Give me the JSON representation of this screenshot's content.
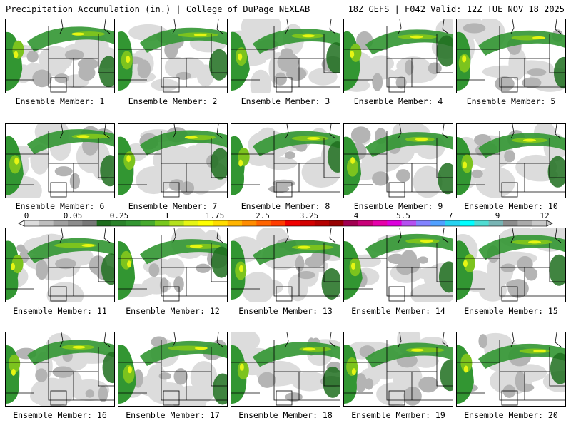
{
  "header": {
    "left": "Precipitation Accumulation (in.) | College of DuPage NEXLAB",
    "right": "18Z GEFS | F042 Valid: 12Z TUE NOV 18 2025"
  },
  "members": [
    "Ensemble Member: 1",
    "Ensemble Member: 2",
    "Ensemble Member: 3",
    "Ensemble Member: 4",
    "Ensemble Member: 5",
    "Ensemble Member: 6",
    "Ensemble Member: 7",
    "Ensemble Member: 8",
    "Ensemble Member: 9",
    "Ensemble Member: 10",
    "Ensemble Member: 11",
    "Ensemble Member: 12",
    "Ensemble Member: 13",
    "Ensemble Member: 14",
    "Ensemble Member: 15",
    "Ensemble Member: 16",
    "Ensemble Member: 17",
    "Ensemble Member: 18",
    "Ensemble Member: 19",
    "Ensemble Member: 20"
  ],
  "colorbar": {
    "labels": [
      "0",
      "0.05",
      "0.25",
      "1",
      "1.75",
      "2.5",
      "3.25",
      "4",
      "5.5",
      "7",
      "9",
      "12"
    ],
    "colors": [
      "#dcdcdc",
      "#bebebe",
      "#a0a0a0",
      "#8c8c8c",
      "#787878",
      "#1e6e1e",
      "#2a822a",
      "#329632",
      "#46aa2e",
      "#78c81e",
      "#b4e11e",
      "#e6f514",
      "#ffff00",
      "#ffdc00",
      "#ffb400",
      "#ff8c00",
      "#ff6400",
      "#ff3c00",
      "#f00000",
      "#d20000",
      "#b40000",
      "#960000",
      "#a00050",
      "#c80078",
      "#e600aa",
      "#dc00dc",
      "#b450f0",
      "#8282ff",
      "#50a0ff",
      "#28d2f0",
      "#00ffff",
      "#50dcd2",
      "#78b4b4",
      "#8c8c8c",
      "#aaaaaa",
      "#c8c8c8"
    ]
  },
  "palette": {
    "light_gray": "#dcdcdc",
    "mid_gray": "#b4b4b4",
    "dark_gray": "#8c8c8c",
    "dark_green": "#1e6e1e",
    "green": "#329632",
    "light_green": "#7cc31e",
    "yellow": "#e6f514"
  }
}
